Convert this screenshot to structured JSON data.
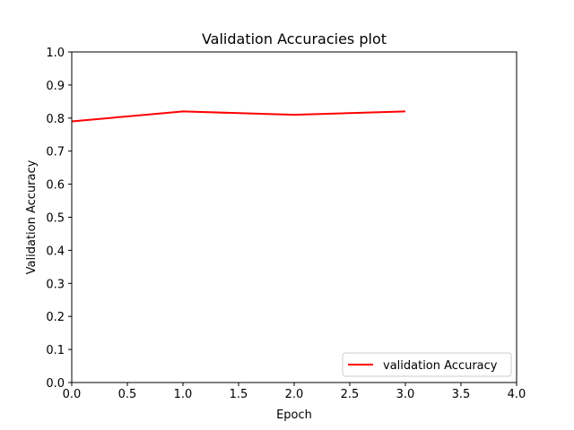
{
  "chart_data": {
    "type": "line",
    "title": "Validation Accuracies plot",
    "xlabel": "Epoch",
    "ylabel": "Validation Accuracy",
    "xlim": [
      0.0,
      4.0
    ],
    "ylim": [
      0.0,
      1.0
    ],
    "x_ticks": [
      "0.0",
      "0.5",
      "1.0",
      "1.5",
      "2.0",
      "2.5",
      "3.0",
      "3.5",
      "4.0"
    ],
    "y_ticks": [
      "0.0",
      "0.1",
      "0.2",
      "0.3",
      "0.4",
      "0.5",
      "0.6",
      "0.7",
      "0.8",
      "0.9",
      "1.0"
    ],
    "grid": false,
    "legend_position": "lower right",
    "series": [
      {
        "name": "validation Accuracy",
        "color": "#ff0000",
        "x": [
          0,
          1,
          2,
          3
        ],
        "y": [
          0.79,
          0.82,
          0.81,
          0.82
        ]
      }
    ]
  }
}
